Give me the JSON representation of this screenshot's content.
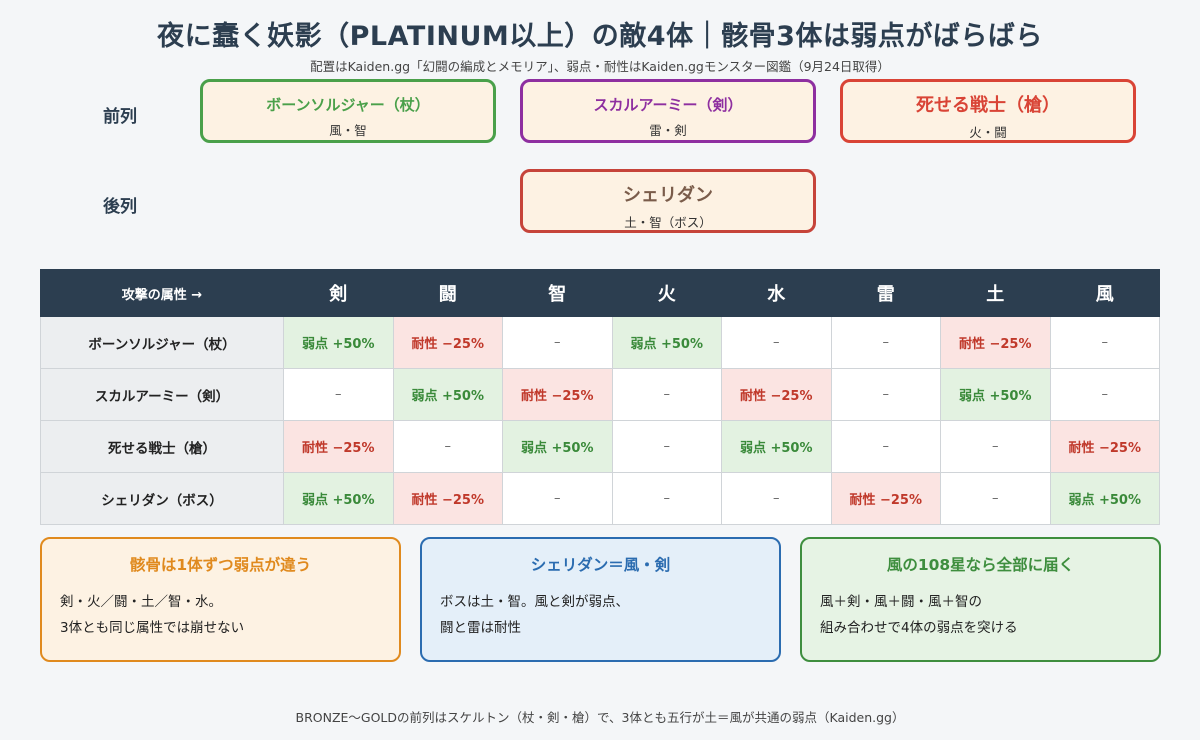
{
  "title": "夜に蠢く妖影（PLATINUM以上）の敵4体｜骸骨3体は弱点がばらばら",
  "subtitle": "配置はKaiden.gg「幻闘の編成とメモリア」、弱点・耐性はKaiden.ggモンスター図鑑（9月24日取得）",
  "formation": {
    "front_label": "前列",
    "back_label": "後列",
    "enemies": [
      {
        "name": "ボーンソルジャー（杖）",
        "attrs": "風・智",
        "color": "#4aa04a"
      },
      {
        "name": "スカルアーミー（剣）",
        "attrs": "雷・剣",
        "color": "#8e2fa0"
      },
      {
        "name": "死せる戦士（槍）",
        "attrs": "火・闘",
        "color": "#d94436"
      },
      {
        "name": "シェリダン",
        "attrs": "土・智（ボス）",
        "color": "#c6443a"
      }
    ]
  },
  "table": {
    "header_label": "攻撃の属性 →",
    "columns": [
      "剣",
      "闘",
      "智",
      "火",
      "水",
      "雷",
      "土",
      "風"
    ],
    "rows": [
      {
        "label": "ボーンソルジャー（杖）",
        "cells": [
          "弱点 +50%",
          "耐性 −25%",
          "–",
          "弱点 +50%",
          "–",
          "–",
          "耐性 −25%",
          "–"
        ]
      },
      {
        "label": "スカルアーミー（剣）",
        "cells": [
          "–",
          "弱点 +50%",
          "耐性 −25%",
          "–",
          "耐性 −25%",
          "–",
          "弱点 +50%",
          "–"
        ]
      },
      {
        "label": "死せる戦士（槍）",
        "cells": [
          "耐性 −25%",
          "–",
          "弱点 +50%",
          "–",
          "弱点 +50%",
          "–",
          "–",
          "耐性 −25%"
        ]
      },
      {
        "label": "シェリダン（ボス）",
        "cells": [
          "弱点 +50%",
          "耐性 −25%",
          "–",
          "–",
          "–",
          "耐性 −25%",
          "–",
          "弱点 +50%"
        ]
      }
    ]
  },
  "notes": [
    {
      "title": "骸骨は1体ずつ弱点が違う",
      "line1": "剣・火／闘・土／智・水。",
      "line2": "3体とも同じ属性では崩せない"
    },
    {
      "title": "シェリダン＝風・剣",
      "line1": "ボスは土・智。風と剣が弱点、",
      "line2": "闘と雷は耐性"
    },
    {
      "title": "風の108星なら全部に届く",
      "line1": "風＋剣・風＋闘・風＋智の",
      "line2": "組み合わせで4体の弱点を突ける"
    }
  ],
  "footer": "BRONZE〜GOLDの前列はスケルトン（杖・剣・槍）で、3体とも五行が土＝風が共通の弱点（Kaiden.gg）"
}
